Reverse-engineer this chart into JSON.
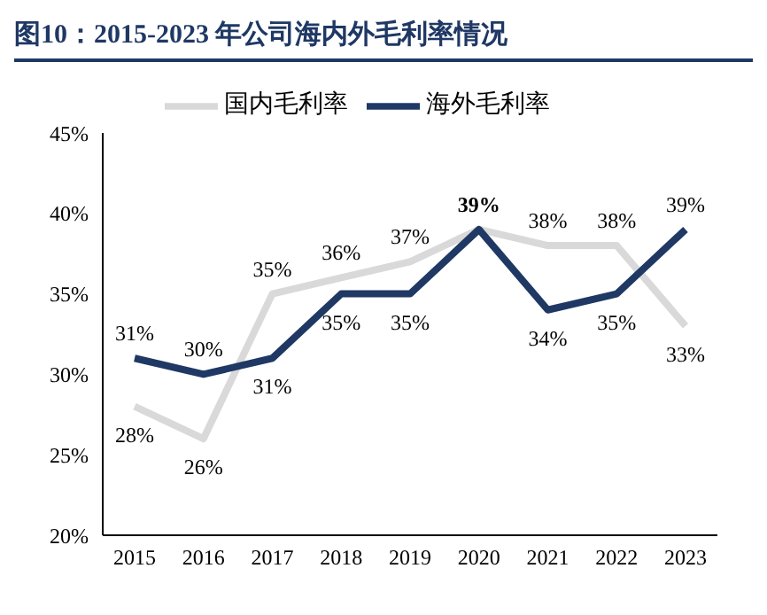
{
  "chart_data": {
    "type": "line",
    "title": "图10：2015-2023 年公司海内外毛利率情况",
    "categories": [
      "2015",
      "2016",
      "2017",
      "2018",
      "2019",
      "2020",
      "2021",
      "2022",
      "2023"
    ],
    "series": [
      {
        "name": "国内毛利率",
        "color": "#d9d9d9",
        "values": [
          28,
          26,
          35,
          36,
          37,
          39,
          38,
          38,
          33
        ],
        "value_labels": [
          "28%",
          "26%",
          "35%",
          "36%",
          "37%",
          null,
          "38%",
          "38%",
          "33%"
        ]
      },
      {
        "name": "海外毛利率",
        "color": "#1f3864",
        "values": [
          31,
          30,
          31,
          35,
          35,
          39,
          34,
          35,
          39
        ],
        "value_labels": [
          "31%",
          "30%",
          "31%",
          "35%",
          "35%",
          "39%",
          "34%",
          "35%",
          "39%"
        ]
      }
    ],
    "ylim": [
      20,
      45
    ],
    "yticks": [
      {
        "value": 20,
        "label": "20%"
      },
      {
        "value": 25,
        "label": "25%"
      },
      {
        "value": 30,
        "label": "30%"
      },
      {
        "value": 35,
        "label": "35%"
      },
      {
        "value": 40,
        "label": "40%"
      },
      {
        "value": 45,
        "label": "45%"
      }
    ],
    "grid": false,
    "legend": "top",
    "marker": "none",
    "line_style": "solid"
  }
}
